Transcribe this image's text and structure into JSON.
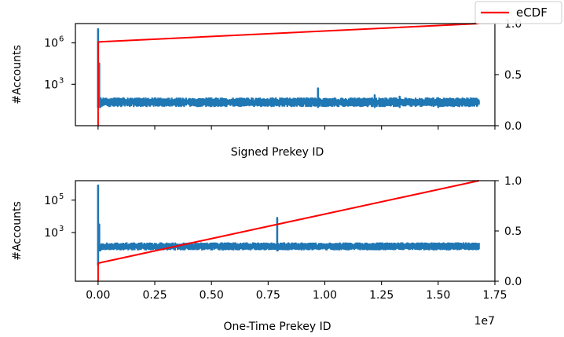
{
  "legend": {
    "label": "eCDF",
    "color": "#ff0000"
  },
  "colors": {
    "hist": "#1f77b4",
    "ecdf": "#ff0000"
  },
  "chart_data": [
    {
      "type": "line",
      "title": "",
      "xlabel": "Signed Prekey ID",
      "ylabel": "#Accounts",
      "xlim": [
        -0.1,
        1.75
      ],
      "x_scale_label": "",
      "show_xticklabels": false,
      "yscale": "log",
      "log_range": [
        0,
        7.4
      ],
      "yticks_left": [
        {
          "exp": 3,
          "base": "10",
          "sup": "3"
        },
        {
          "exp": 6,
          "base": "10",
          "sup": "6"
        }
      ],
      "xticks": [
        0,
        0.25,
        0.5,
        0.75,
        1.0,
        1.25,
        1.5,
        1.75
      ],
      "xtick_labels": [],
      "y2lim": [
        0,
        1.0
      ],
      "y2ticks": [
        0.0,
        0.5,
        1.0
      ],
      "y2tick_labels": [
        "0.0",
        "0.5",
        "1.0"
      ],
      "series": [
        {
          "name": "#Accounts",
          "baseline_log": 1.7,
          "noise_log": 0.35,
          "x_end": 1.68,
          "points": [
            [
              0,
              1.5
            ],
            [
              0,
              7.0
            ],
            [
              0.005,
              4.5
            ],
            [
              0.01,
              2.0
            ],
            [
              0.97,
              2.7
            ],
            [
              1.22,
              2.2
            ],
            [
              1.33,
              2.1
            ],
            [
              1.5,
              2.0
            ]
          ]
        },
        {
          "name": "eCDF",
          "points": [
            [
              0,
              0.0
            ],
            [
              0,
              0.82
            ],
            [
              1.68,
              1.0
            ]
          ]
        }
      ]
    },
    {
      "type": "line",
      "title": "",
      "xlabel": "One-Time Prekey ID",
      "ylabel": "#Accounts",
      "xlim": [
        -0.1,
        1.75
      ],
      "x_scale_label": "1e7",
      "show_xticklabels": true,
      "yscale": "log",
      "log_range": [
        0,
        6.2
      ],
      "yticks_left": [
        {
          "exp": 3,
          "base": "10",
          "sup": "3"
        },
        {
          "exp": 5,
          "base": "10",
          "sup": "5"
        }
      ],
      "xticks": [
        0,
        0.25,
        0.5,
        0.75,
        1.0,
        1.25,
        1.5,
        1.75
      ],
      "xtick_labels": [
        "0.00",
        "0.25",
        "0.50",
        "0.75",
        "1.00",
        "1.25",
        "1.50",
        "1.75"
      ],
      "y2lim": [
        0,
        1.0
      ],
      "y2ticks": [
        0.0,
        0.5,
        1.0
      ],
      "y2tick_labels": [
        "0.0",
        "0.5",
        "1.0"
      ],
      "series": [
        {
          "name": "#Accounts",
          "baseline_log": 2.15,
          "noise_log": 0.25,
          "x_end": 1.68,
          "points": [
            [
              0,
              1.0
            ],
            [
              0,
              5.9
            ],
            [
              0.005,
              3.5
            ],
            [
              0.01,
              2.2
            ],
            [
              0.79,
              3.9
            ],
            [
              0.792,
              2.2
            ]
          ]
        },
        {
          "name": "eCDF",
          "points": [
            [
              0,
              0.0
            ],
            [
              0,
              0.18
            ],
            [
              1.68,
              1.0
            ]
          ]
        }
      ]
    }
  ]
}
